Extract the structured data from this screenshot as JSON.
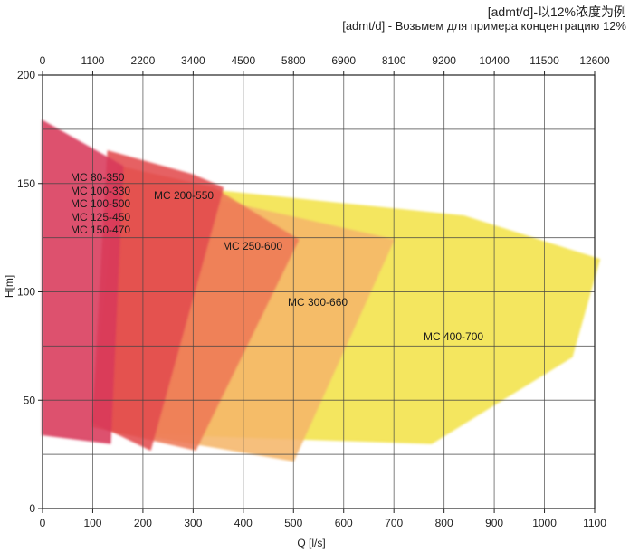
{
  "header": {
    "line1": "[admt/d]-以12%浓度为例",
    "line2": "[admt/d] - Возьмем для примера концентрацию 12%"
  },
  "chart_data": {
    "type": "area",
    "xlabel": "Q [l/s]",
    "ylabel": "H[m]",
    "xlim": [
      0,
      1100
    ],
    "ylim": [
      0,
      200
    ],
    "x_ticks": [
      0,
      100,
      200,
      300,
      400,
      500,
      600,
      700,
      800,
      900,
      1000,
      1100
    ],
    "y_ticks": [
      0,
      50,
      100,
      150,
      200
    ],
    "top_axis_ticks": [
      "0",
      "1100",
      "2200",
      "3400",
      "4500",
      "5800",
      "6900",
      "8100",
      "9200",
      "10400",
      "11500",
      "12600"
    ],
    "grid": true,
    "regions": [
      {
        "name": "MC 400-700",
        "labels": [
          "MC 400-700"
        ],
        "color": "#F2E24A",
        "points": [
          [
            165,
            151
          ],
          [
            840,
            135
          ],
          [
            1110,
            115
          ],
          [
            1055,
            70
          ],
          [
            775,
            30
          ],
          [
            150,
            35
          ]
        ]
      },
      {
        "name": "MC 300-660",
        "labels": [
          "MC 300-660"
        ],
        "color": "#F5B66A",
        "points": [
          [
            150,
            150
          ],
          [
            240,
            148
          ],
          [
            700,
            124
          ],
          [
            500,
            22
          ],
          [
            100,
            38
          ]
        ]
      },
      {
        "name": "MC 250-600",
        "labels": [
          "MC 250-600"
        ],
        "color": "#EE7A56",
        "points": [
          [
            150,
            158
          ],
          [
            340,
            148
          ],
          [
            510,
            124
          ],
          [
            305,
            27
          ],
          [
            100,
            38
          ]
        ]
      },
      {
        "name": "MC 200-550",
        "labels": [
          "MC 200-550"
        ],
        "color": "#E24C4F",
        "points": [
          [
            130,
            165
          ],
          [
            300,
            154
          ],
          [
            360,
            148
          ],
          [
            215,
            27
          ],
          [
            100,
            40
          ]
        ]
      },
      {
        "name": "MC 80-350 group",
        "labels": [
          "MC 80-350",
          "MC 100-330",
          "MC 100-500",
          "MC 125-450",
          "MC 150-470"
        ],
        "color": "#D8395A",
        "points": [
          [
            0,
            179
          ],
          [
            160,
            158
          ],
          [
            135,
            30
          ],
          [
            0,
            34
          ]
        ]
      }
    ]
  }
}
